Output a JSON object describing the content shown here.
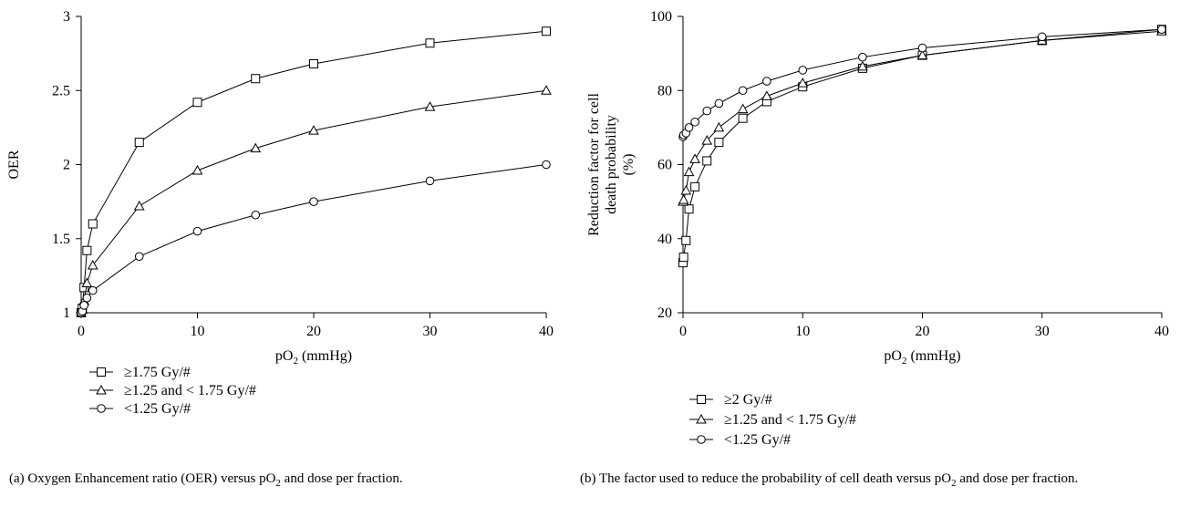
{
  "chart_data": [
    {
      "id": "a",
      "type": "line",
      "xlabel": "pO₂ (mmHg)",
      "ylabel": "OER",
      "xlim": [
        0,
        40
      ],
      "ylim": [
        1,
        3
      ],
      "xticks": [
        0,
        10,
        20,
        30,
        40
      ],
      "yticks": [
        1,
        1.5,
        2,
        2.5,
        3
      ],
      "ytick_labels": [
        "1",
        "1.5",
        "2",
        "2.5",
        "3"
      ],
      "grid": false,
      "legend_position": "bottom-left, below plot",
      "caption_label": "(a)",
      "caption_text": "Oxygen Enhancement ratio (OER) versus pO₂ and dose per fraction.",
      "series": [
        {
          "name": "≥1.75 Gy/#",
          "marker": "square",
          "x": [
            0,
            0.1,
            0.25,
            0.5,
            1,
            5,
            10,
            15,
            20,
            30,
            40
          ],
          "y": [
            1.0,
            1.03,
            1.17,
            1.42,
            1.6,
            2.15,
            2.42,
            2.58,
            2.68,
            2.82,
            2.9
          ]
        },
        {
          "name": "≥1.25 and < 1.75 Gy/#",
          "marker": "triangle",
          "x": [
            0,
            0.1,
            0.25,
            0.5,
            1,
            5,
            10,
            15,
            20,
            30,
            40
          ],
          "y": [
            1.0,
            1.02,
            1.08,
            1.2,
            1.32,
            1.72,
            1.96,
            2.11,
            2.23,
            2.39,
            2.5
          ]
        },
        {
          "name": "<1.25 Gy/#",
          "marker": "circle",
          "x": [
            0,
            0.1,
            0.25,
            0.5,
            1,
            5,
            10,
            15,
            20,
            30,
            40
          ],
          "y": [
            1.0,
            1.01,
            1.05,
            1.1,
            1.15,
            1.38,
            1.55,
            1.66,
            1.75,
            1.89,
            2.0
          ]
        }
      ]
    },
    {
      "id": "b",
      "type": "line",
      "xlabel": "pO₂ (mmHg)",
      "ylabel_lines": [
        "Reduction factor for cell",
        "death probability",
        "(%)"
      ],
      "xlim": [
        0,
        40
      ],
      "ylim": [
        20,
        100
      ],
      "xticks": [
        0,
        10,
        20,
        30,
        40
      ],
      "yticks": [
        20,
        40,
        60,
        80,
        100
      ],
      "ytick_labels": [
        "20",
        "40",
        "60",
        "80",
        "100"
      ],
      "grid": false,
      "legend_position": "bottom-left, below plot",
      "caption_label": "(b)",
      "caption_text": "The factor used to reduce the probability of cell death versus pO₂ and dose per fraction.",
      "series": [
        {
          "name": "≥2 Gy/#",
          "marker": "square",
          "x": [
            0,
            0.05,
            0.25,
            0.5,
            1,
            2,
            3,
            5,
            7,
            10,
            15,
            20,
            30,
            40
          ],
          "y": [
            33.5,
            35,
            39.5,
            48,
            54,
            61,
            66,
            72.5,
            77,
            81,
            86,
            89.5,
            93.5,
            96.5
          ]
        },
        {
          "name": "≥1.25 and < 1.75 Gy/#",
          "marker": "triangle",
          "x": [
            0,
            0.05,
            0.25,
            0.5,
            1,
            2,
            3,
            5,
            7,
            10,
            15,
            20,
            30,
            40
          ],
          "y": [
            50,
            50.5,
            53,
            58,
            61.5,
            66.5,
            70,
            75,
            78.5,
            82,
            86.5,
            89.5,
            93.5,
            96
          ]
        },
        {
          "name": "<1.25 Gy/#",
          "marker": "circle",
          "x": [
            0,
            0.05,
            0.25,
            0.5,
            1,
            2,
            3,
            5,
            7,
            10,
            15,
            20,
            30,
            40
          ],
          "y": [
            67.5,
            68,
            68.5,
            70,
            71.5,
            74.5,
            76.5,
            80,
            82.5,
            85.5,
            89,
            91.5,
            94.5,
            96.5
          ]
        }
      ]
    }
  ]
}
